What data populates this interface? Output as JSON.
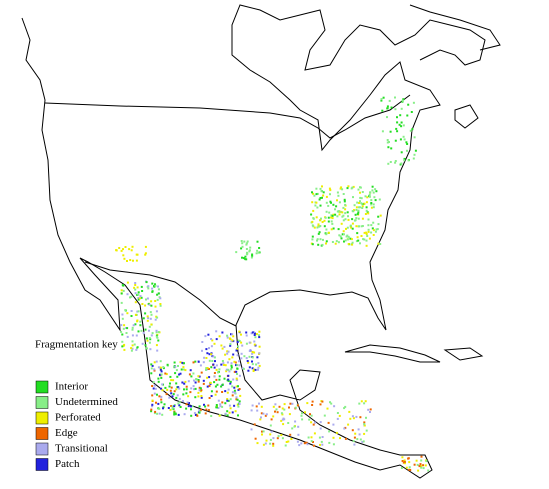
{
  "legend": {
    "title": "Fragmentation key",
    "items": [
      {
        "label": "Interior",
        "color": "#22dd22"
      },
      {
        "label": "Undetermined",
        "color": "#88ee88"
      },
      {
        "label": "Perforated",
        "color": "#eeee00"
      },
      {
        "label": "Edge",
        "color": "#ee6600"
      },
      {
        "label": "Transitional",
        "color": "#aaaaee"
      },
      {
        "label": "Patch",
        "color": "#2222dd"
      }
    ]
  }
}
